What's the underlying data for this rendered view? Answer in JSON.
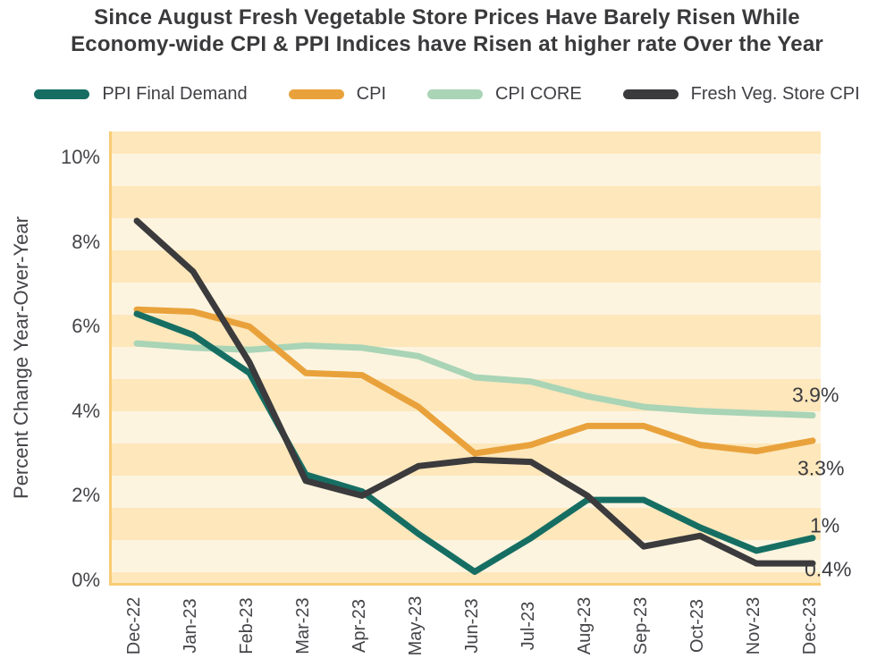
{
  "title": {
    "line1": "Since August Fresh Vegetable  Store Prices Have Barely Risen While",
    "line2": "Economy-wide CPI & PPI Indices have Risen at higher rate Over the Year"
  },
  "colors": {
    "ppi_final_demand": "#166e63",
    "cpi": "#e9a23b",
    "cpi_core": "#a9d4b6",
    "fresh_veg_store_cpi": "#3b3a3c",
    "stripe_dark": "#fde7bb",
    "stripe_light": "#fcf4df",
    "axis_border": "#f8cb74",
    "title_text": "#3a393b",
    "tick_text": "#454449"
  },
  "chart_data": {
    "type": "line",
    "title": "Since August Fresh Vegetable Store Prices Have Barely Risen While Economy-wide CPI & PPI Indices have Risen at higher rate Over the Year",
    "xlabel": "",
    "ylabel": "Percent Change Year-Over-Year",
    "ylim": [
      0,
      10.6
    ],
    "grid": "horizontal-stripes",
    "legend_position": "top",
    "x": [
      "Dec-22",
      "Jan-23",
      "Feb-23",
      "Mar-23",
      "Apr-23",
      "May-23",
      "Jun-23",
      "Jul-23",
      "Aug-23",
      "Sep-23",
      "Oct-23",
      "Nov-23",
      "Dec-23"
    ],
    "y_ticks": [
      {
        "label": "0%",
        "value": 0
      },
      {
        "label": "2%",
        "value": 2
      },
      {
        "label": "4%",
        "value": 4
      },
      {
        "label": "6%",
        "value": 6
      },
      {
        "label": "8%",
        "value": 8
      },
      {
        "label": "10%",
        "value": 10
      }
    ],
    "series": [
      {
        "name": "PPI Final Demand",
        "color": "#166e63",
        "end_label": "1%",
        "values": [
          6.3,
          5.8,
          4.9,
          2.5,
          2.1,
          1.1,
          0.2,
          1.0,
          1.9,
          1.9,
          1.25,
          0.7,
          1.0
        ]
      },
      {
        "name": "CPI",
        "color": "#e9a23b",
        "end_label": "3.3%",
        "values": [
          6.4,
          6.35,
          6.0,
          4.9,
          4.85,
          4.1,
          3.0,
          3.2,
          3.65,
          3.65,
          3.2,
          3.05,
          3.3
        ]
      },
      {
        "name": "CPI CORE",
        "color": "#a9d4b6",
        "end_label": "3.9%",
        "values": [
          5.6,
          5.5,
          5.45,
          5.55,
          5.5,
          5.3,
          4.8,
          4.7,
          4.35,
          4.1,
          4.0,
          3.95,
          3.9
        ]
      },
      {
        "name": "Fresh Veg. Store CPI",
        "color": "#3b3a3c",
        "end_label": "0.4%",
        "values": [
          8.5,
          7.3,
          5.15,
          2.35,
          2.0,
          2.7,
          2.85,
          2.8,
          2.0,
          0.8,
          1.05,
          0.4,
          0.4
        ]
      }
    ]
  }
}
